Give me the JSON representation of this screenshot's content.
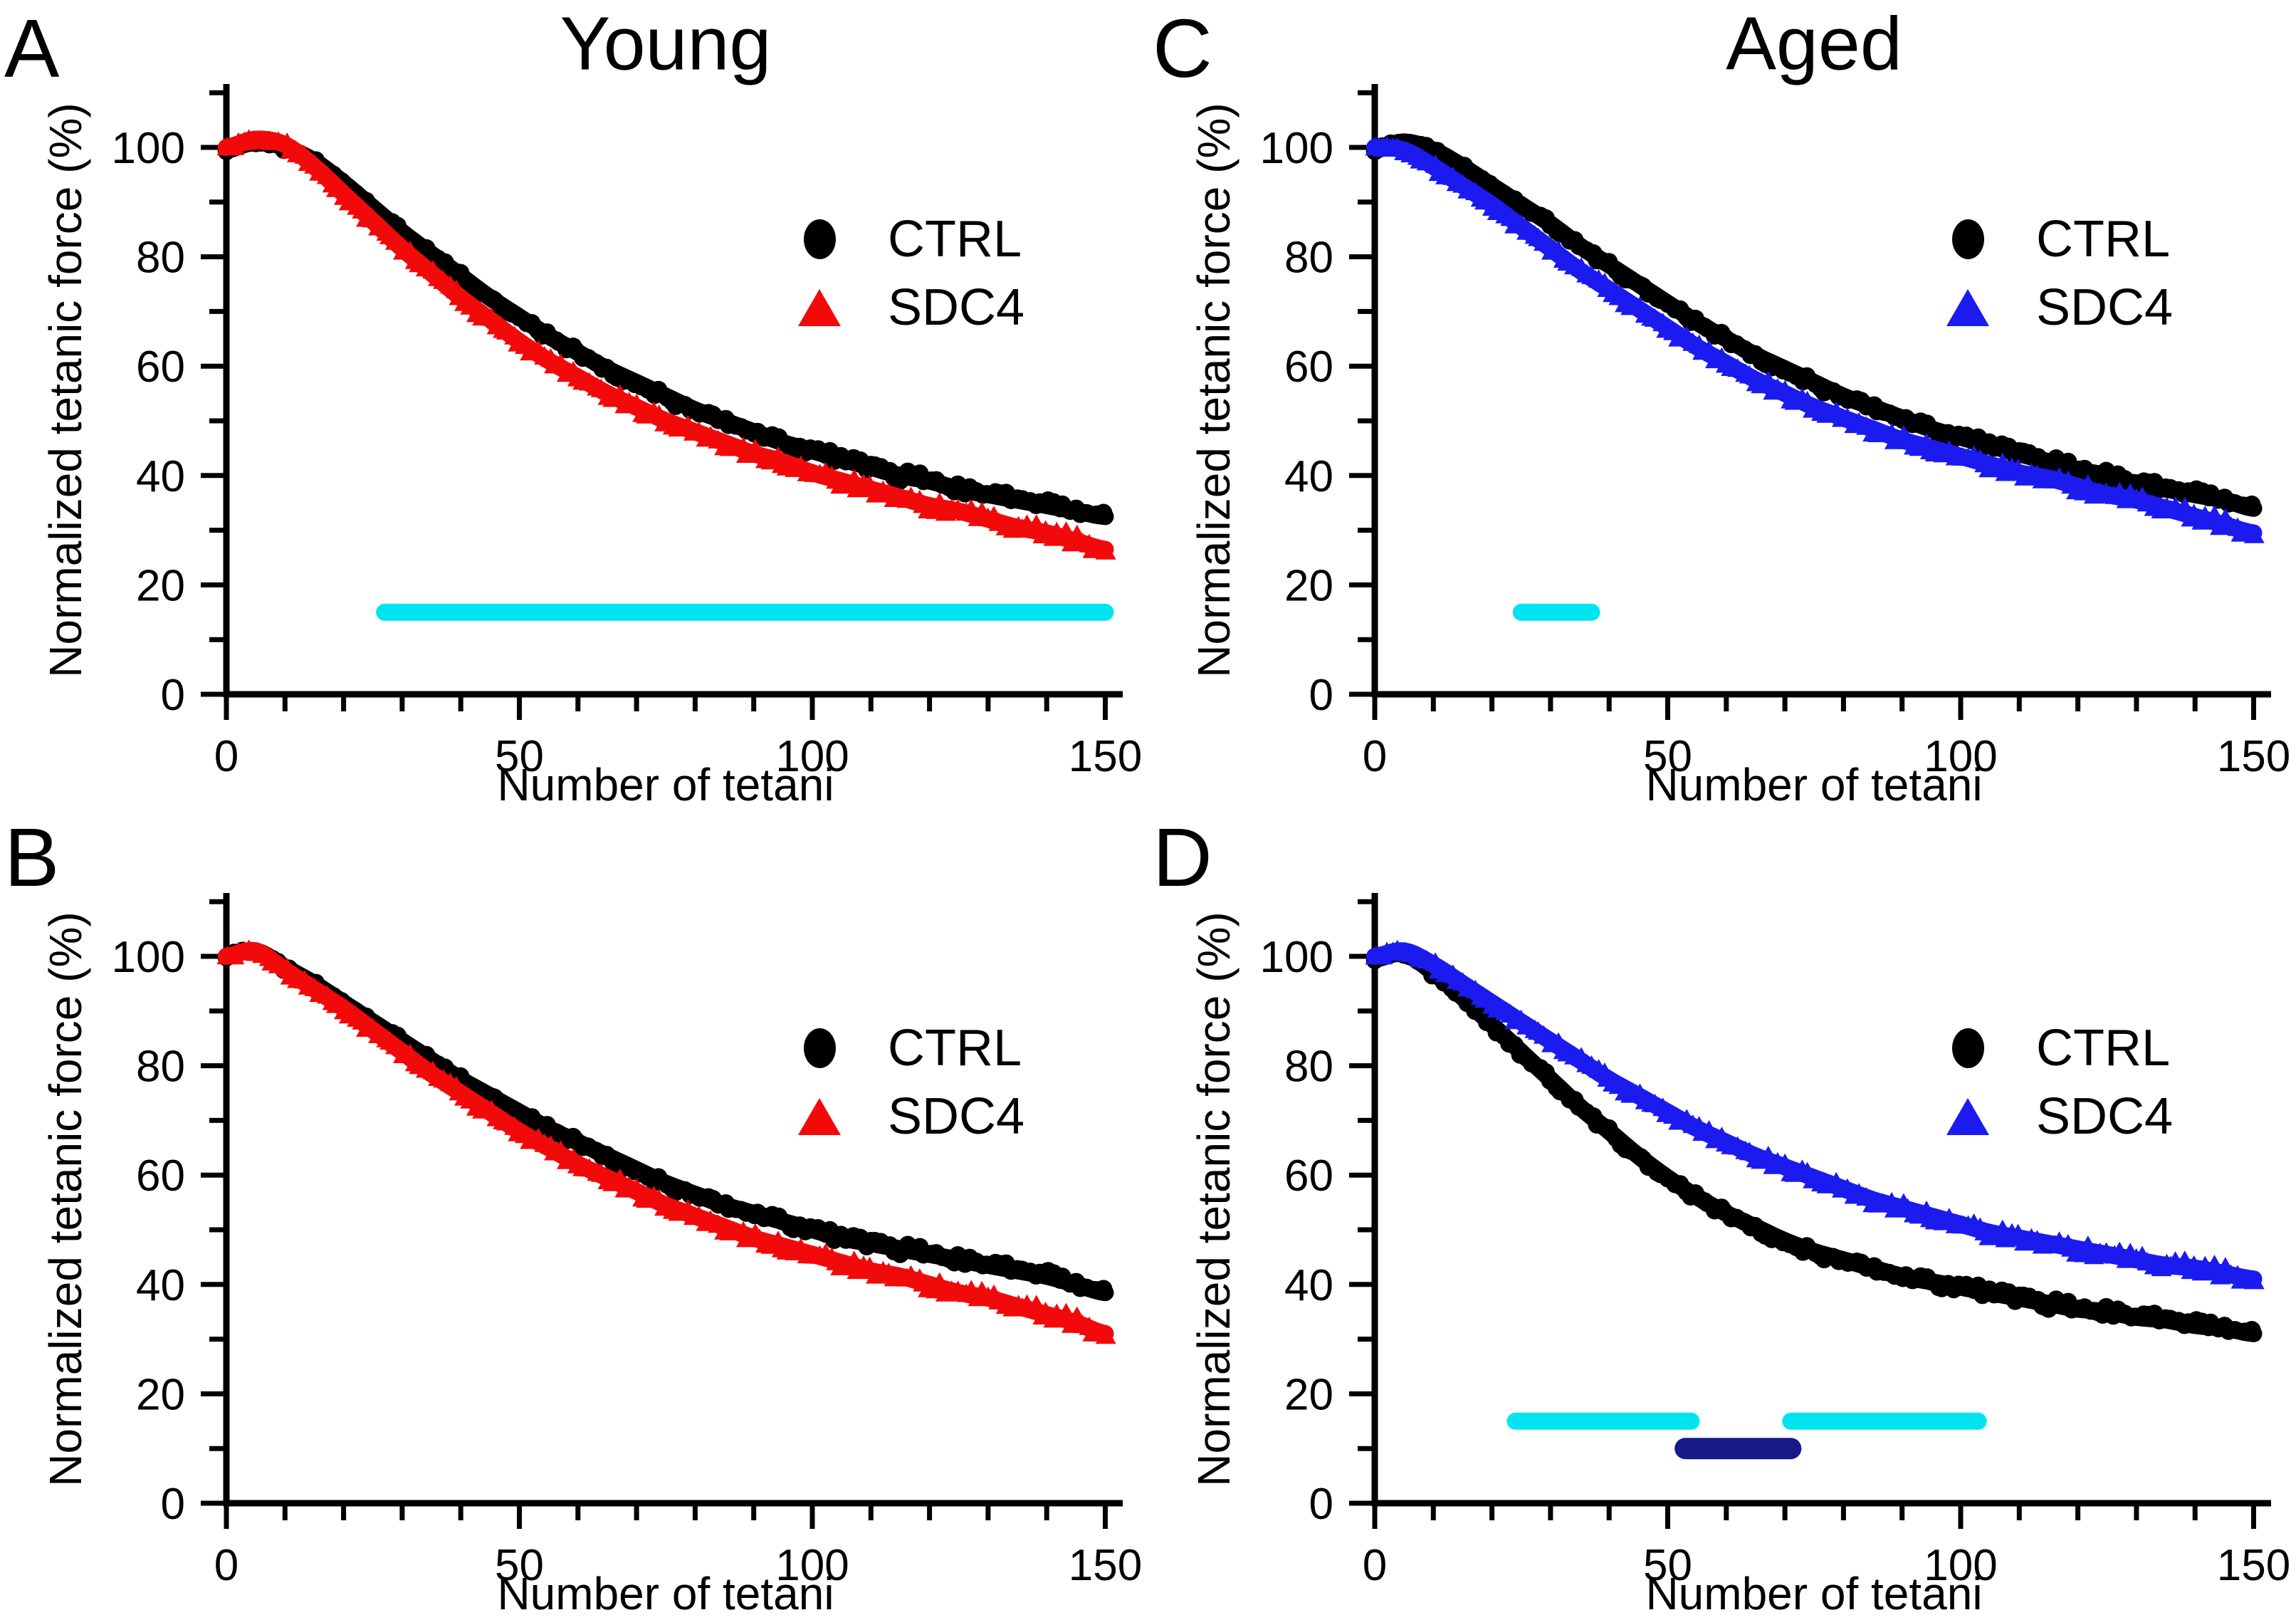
{
  "colors": {
    "ctrl": "#000000",
    "sdc4_young": "#f20a0a",
    "sdc4_aged": "#1b1bef",
    "significance_cyan": "#00e4f0",
    "significance_navy": "#191989",
    "axis": "#000000",
    "background": "#ffffff"
  },
  "chart_data": [
    {
      "panel_label": "A",
      "title": "Young",
      "type": "scatter",
      "xlabel": "Number of tetani",
      "ylabel": "Normalized tetanic force (%)",
      "xlim": [
        0,
        153
      ],
      "ylim": [
        0,
        111
      ],
      "x_major_ticks": [
        0,
        50,
        100,
        150
      ],
      "x_minor_ticks": [
        10,
        20,
        30,
        40,
        60,
        70,
        80,
        90,
        110,
        120,
        130,
        140
      ],
      "y_major_ticks": [
        0,
        20,
        40,
        60,
        80,
        100
      ],
      "y_minor_ticks": [
        10,
        30,
        50,
        70,
        90,
        110
      ],
      "legend": {
        "position": "inside-upper-right",
        "entries": [
          {
            "label": "CTRL",
            "marker": "circle",
            "color": "#000000"
          },
          {
            "label": "SDC4",
            "marker": "triangle",
            "color": "#f20a0a"
          }
        ]
      },
      "x": [
        0,
        5,
        10,
        15,
        20,
        25,
        30,
        35,
        40,
        45,
        50,
        55,
        60,
        65,
        70,
        75,
        80,
        85,
        90,
        95,
        100,
        105,
        110,
        115,
        120,
        125,
        130,
        135,
        140,
        145,
        150
      ],
      "series": [
        {
          "name": "CTRL",
          "marker": "circle",
          "color": "#000000",
          "values": [
            99.5,
            101,
            100,
            97.5,
            93.5,
            89,
            84.5,
            80.5,
            76.5,
            72.5,
            69,
            65.5,
            62.5,
            59.5,
            57,
            54.5,
            52,
            50,
            48,
            46,
            44.5,
            43,
            41.5,
            40,
            39,
            37.5,
            36.5,
            35.5,
            34.5,
            33.5,
            32.5
          ]
        },
        {
          "name": "SDC4",
          "marker": "triangle",
          "color": "#f20a0a",
          "values": [
            100,
            101.5,
            100.5,
            96.5,
            91.5,
            86.5,
            81.5,
            77,
            72.5,
            68.5,
            64.5,
            61,
            58,
            55,
            52.5,
            50,
            48,
            46,
            44,
            42.5,
            40.5,
            39,
            37.5,
            36,
            34.5,
            33.5,
            32,
            30.5,
            29.5,
            28,
            26.5
          ]
        }
      ],
      "significance_bars": [
        {
          "x_start": 27,
          "x_end": 150,
          "y": 15,
          "color": "#00e4f0",
          "thickness": 24
        }
      ]
    },
    {
      "panel_label": "B",
      "title": "",
      "type": "scatter",
      "xlabel": "Number of tetani",
      "ylabel": "Normalized tetanic force (%)",
      "xlim": [
        0,
        153
      ],
      "ylim": [
        0,
        111
      ],
      "x_major_ticks": [
        0,
        50,
        100,
        150
      ],
      "x_minor_ticks": [
        10,
        20,
        30,
        40,
        60,
        70,
        80,
        90,
        110,
        120,
        130,
        140
      ],
      "y_major_ticks": [
        0,
        20,
        40,
        60,
        80,
        100
      ],
      "y_minor_ticks": [
        10,
        30,
        50,
        70,
        90,
        110
      ],
      "legend": {
        "position": "inside-upper-right",
        "entries": [
          {
            "label": "CTRL",
            "marker": "circle",
            "color": "#000000"
          },
          {
            "label": "SDC4",
            "marker": "triangle",
            "color": "#f20a0a"
          }
        ]
      },
      "x": [
        0,
        5,
        10,
        15,
        20,
        25,
        30,
        35,
        40,
        45,
        50,
        55,
        60,
        65,
        70,
        75,
        80,
        85,
        90,
        95,
        100,
        105,
        110,
        115,
        120,
        125,
        130,
        135,
        140,
        145,
        150
      ],
      "series": [
        {
          "name": "CTRL",
          "marker": "circle",
          "color": "#000000",
          "values": [
            100,
            101,
            98,
            95,
            91.5,
            88,
            84.5,
            81,
            77.5,
            74.5,
            71.5,
            68.5,
            66,
            63.5,
            61,
            58.5,
            56.5,
            54.5,
            53,
            51.5,
            50,
            48.5,
            47.5,
            46.5,
            45.5,
            44.5,
            43.5,
            42.5,
            41.5,
            40,
            38.5
          ]
        },
        {
          "name": "SDC4",
          "marker": "triangle",
          "color": "#f20a0a",
          "values": [
            100,
            101,
            97.5,
            94,
            90.5,
            86.5,
            82.5,
            78.5,
            75,
            71.5,
            68,
            65,
            62,
            59.5,
            57,
            54.5,
            52.5,
            50.5,
            48.5,
            47,
            45.5,
            44,
            42.5,
            41.5,
            40,
            38.5,
            37.5,
            36,
            34.5,
            33,
            31
          ]
        }
      ],
      "significance_bars": []
    },
    {
      "panel_label": "C",
      "title": "Aged",
      "type": "scatter",
      "xlabel": "Number of tetani",
      "ylabel": "Normalized tetanic force (%)",
      "xlim": [
        0,
        153
      ],
      "ylim": [
        0,
        111
      ],
      "x_major_ticks": [
        0,
        50,
        100,
        150
      ],
      "x_minor_ticks": [
        10,
        20,
        30,
        40,
        60,
        70,
        80,
        90,
        110,
        120,
        130,
        140
      ],
      "y_major_ticks": [
        0,
        20,
        40,
        60,
        80,
        100
      ],
      "y_minor_ticks": [
        10,
        30,
        50,
        70,
        90,
        110
      ],
      "legend": {
        "position": "inside-upper-right",
        "entries": [
          {
            "label": "CTRL",
            "marker": "circle",
            "color": "#000000"
          },
          {
            "label": "SDC4",
            "marker": "triangle",
            "color": "#1b1bef"
          }
        ]
      },
      "x": [
        0,
        5,
        10,
        15,
        20,
        25,
        30,
        35,
        40,
        45,
        50,
        55,
        60,
        65,
        70,
        75,
        80,
        85,
        90,
        95,
        100,
        105,
        110,
        115,
        120,
        125,
        130,
        135,
        140,
        145,
        150
      ],
      "series": [
        {
          "name": "CTRL",
          "marker": "circle",
          "color": "#000000",
          "values": [
            99.5,
            101,
            99.5,
            96.5,
            93,
            89.5,
            86,
            82,
            78.5,
            75,
            71.5,
            68,
            65,
            62,
            59.5,
            57,
            54.5,
            52.5,
            50.5,
            48.5,
            47,
            45.5,
            44,
            42.5,
            41,
            40,
            38.5,
            37.5,
            36.5,
            35.5,
            34
          ]
        },
        {
          "name": "SDC4",
          "marker": "triangle",
          "color": "#1b1bef",
          "values": [
            100,
            99.5,
            96.5,
            93,
            89.5,
            85.5,
            81.5,
            77.5,
            74,
            70.5,
            67,
            63.5,
            60.5,
            57.5,
            55,
            52.5,
            50.5,
            48.5,
            46.5,
            45,
            43.5,
            42,
            40.5,
            39.5,
            38,
            36.5,
            35.5,
            34,
            32.5,
            31,
            29.5
          ]
        }
      ],
      "significance_bars": [
        {
          "x_start": 25,
          "x_end": 37,
          "y": 15,
          "color": "#00e4f0",
          "thickness": 24
        }
      ]
    },
    {
      "panel_label": "D",
      "title": "",
      "type": "scatter",
      "xlabel": "Number of tetani",
      "ylabel": "Normalized tetanic force (%)",
      "xlim": [
        0,
        153
      ],
      "ylim": [
        0,
        111
      ],
      "x_major_ticks": [
        0,
        50,
        100,
        150
      ],
      "x_minor_ticks": [
        10,
        20,
        30,
        40,
        60,
        70,
        80,
        90,
        110,
        120,
        130,
        140
      ],
      "y_major_ticks": [
        0,
        20,
        40,
        60,
        80,
        100
      ],
      "y_minor_ticks": [
        10,
        30,
        50,
        70,
        90,
        110
      ],
      "legend": {
        "position": "inside-upper-right",
        "entries": [
          {
            "label": "CTRL",
            "marker": "circle",
            "color": "#000000"
          },
          {
            "label": "SDC4",
            "marker": "triangle",
            "color": "#1b1bef"
          }
        ]
      },
      "x": [
        0,
        5,
        10,
        15,
        20,
        25,
        30,
        35,
        40,
        45,
        50,
        55,
        60,
        65,
        70,
        75,
        80,
        85,
        90,
        95,
        100,
        105,
        110,
        115,
        120,
        125,
        130,
        135,
        140,
        145,
        150
      ],
      "series": [
        {
          "name": "CTRL",
          "marker": "circle",
          "color": "#000000",
          "values": [
            99.5,
            100.5,
            97,
            92.5,
            87.5,
            82.5,
            77.5,
            72.5,
            68,
            63.5,
            59.5,
            56,
            53,
            50.5,
            48,
            46,
            44.5,
            43,
            41.5,
            40.5,
            39.5,
            38.5,
            37.5,
            36.5,
            35.5,
            35,
            34,
            33.5,
            32.5,
            32,
            31
          ]
        },
        {
          "name": "SDC4",
          "marker": "triangle",
          "color": "#1b1bef",
          "values": [
            100,
            101,
            98.5,
            95,
            91.5,
            88,
            84.5,
            81,
            77.5,
            74.5,
            71.5,
            68.5,
            66,
            63.5,
            61.5,
            59.5,
            57.5,
            55.5,
            54,
            52.5,
            51,
            49.5,
            48.5,
            47.5,
            46.5,
            45.5,
            44.5,
            43.5,
            43,
            42,
            41
          ]
        }
      ],
      "significance_bars": [
        {
          "x_start": 24,
          "x_end": 54,
          "y": 15,
          "color": "#00e4f0",
          "thickness": 24
        },
        {
          "x_start": 71,
          "x_end": 103,
          "y": 15,
          "color": "#00e4f0",
          "thickness": 24
        },
        {
          "x_start": 53,
          "x_end": 71,
          "y": 10,
          "color": "#191989",
          "thickness": 30
        }
      ]
    }
  ]
}
